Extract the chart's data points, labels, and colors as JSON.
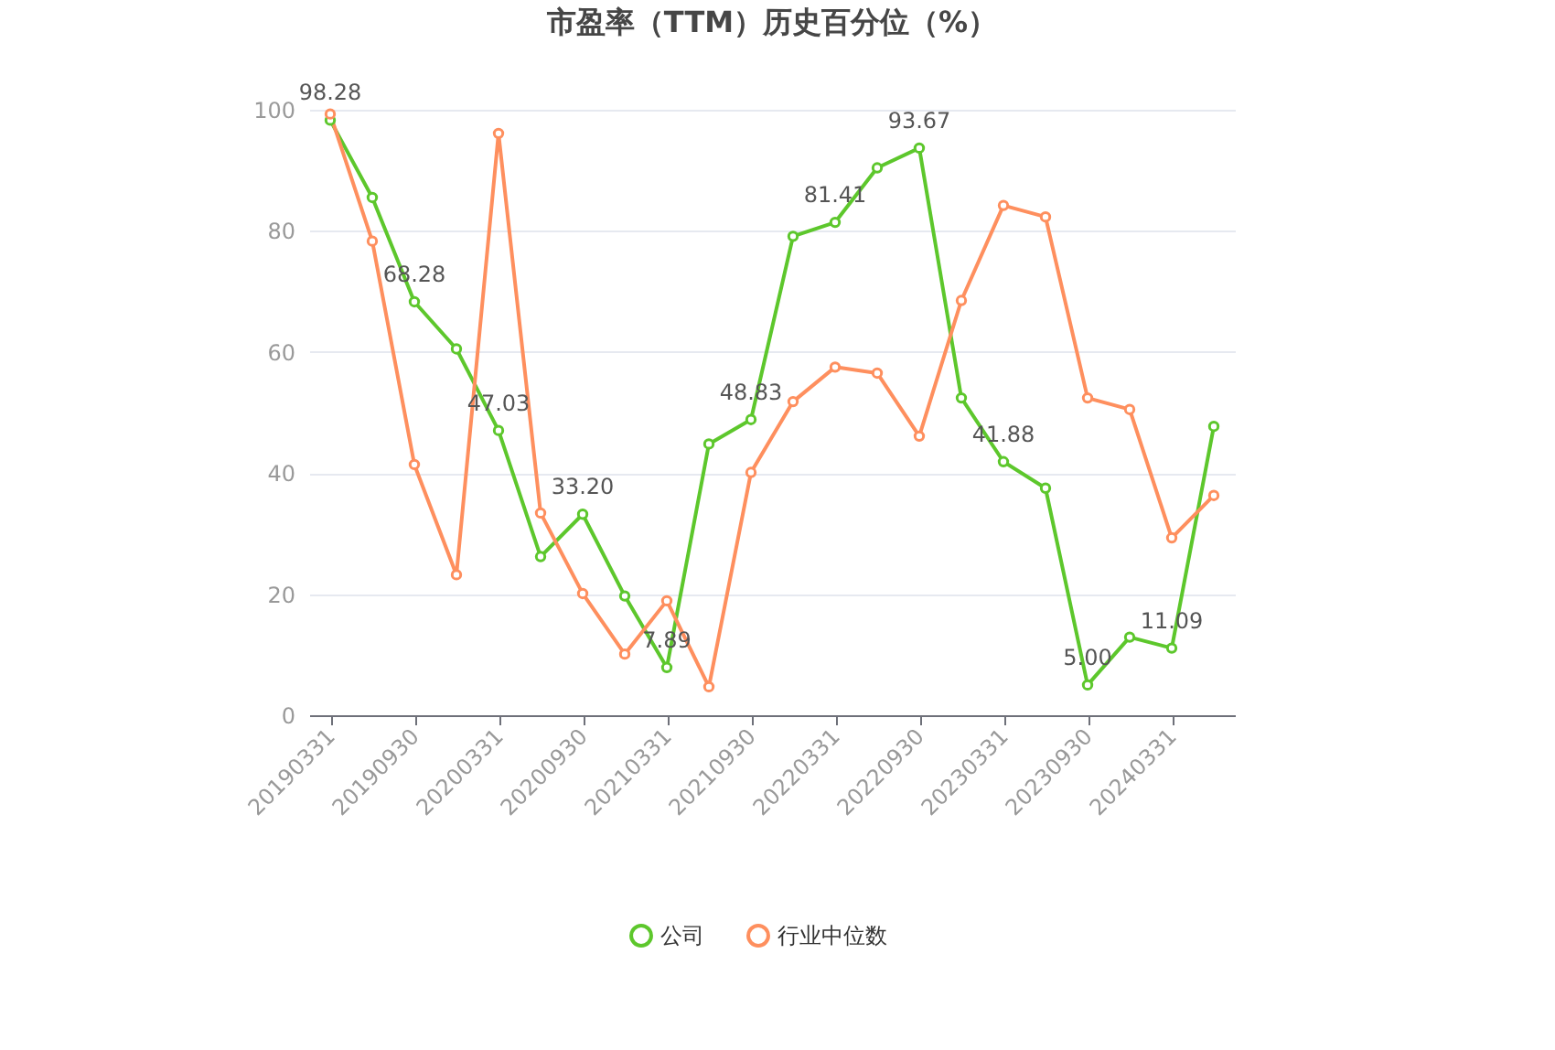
{
  "chart_data": {
    "type": "line",
    "title": "市盈率（TTM）历史百分位（%）",
    "categories": [
      "20190331",
      null,
      "20190930",
      null,
      "20200331",
      null,
      "20200930",
      null,
      "20210331",
      null,
      "20210930",
      null,
      "20220331",
      null,
      "20220930",
      null,
      "20230331",
      null,
      "20230930",
      null,
      "20240331",
      null
    ],
    "series": [
      {
        "name": "公司",
        "color": "#5dc72c",
        "values": [
          98.28,
          85.5,
          68.28,
          60.5,
          47.03,
          26.2,
          33.2,
          19.7,
          7.89,
          44.8,
          48.83,
          79.1,
          81.41,
          90.4,
          93.67,
          52.4,
          41.88,
          37.5,
          5.0,
          12.9,
          11.09,
          47.7
        ],
        "value_labels": [
          "98.28",
          null,
          "68.28",
          null,
          "47.03",
          null,
          "33.20",
          null,
          "7.89",
          null,
          "48.83",
          null,
          "81.41",
          null,
          "93.67",
          null,
          "41.88",
          null,
          "5.00",
          null,
          "11.09",
          null
        ]
      },
      {
        "name": "行业中位数",
        "color": "#fe8f5e",
        "values": [
          99.3,
          78.3,
          41.4,
          23.2,
          96.1,
          33.4,
          20.1,
          10.1,
          18.9,
          4.7,
          40.1,
          51.8,
          57.5,
          56.5,
          46.1,
          68.5,
          84.2,
          82.3,
          52.4,
          50.5,
          29.3,
          36.3
        ]
      }
    ],
    "ylim": [
      0,
      100
    ],
    "yticks": [
      0,
      20,
      40,
      60,
      80,
      100
    ],
    "grid": "y",
    "legend": "bottom",
    "marker": "circle"
  }
}
